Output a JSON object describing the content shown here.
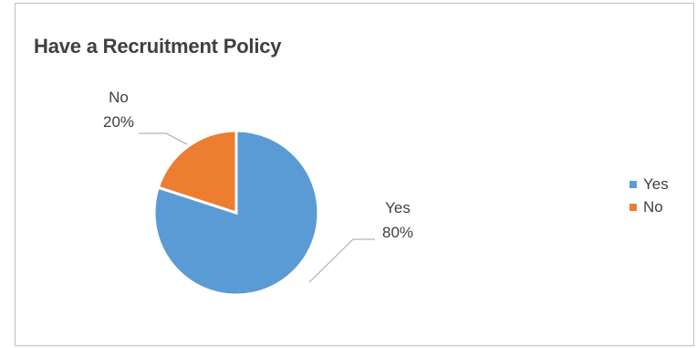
{
  "chart_data": {
    "type": "pie",
    "title": "Have a Recruitment Policy",
    "categories": [
      "Yes",
      "No"
    ],
    "values": [
      80,
      20
    ],
    "unit": "%",
    "slice_labels": [
      {
        "name": "Yes",
        "value_label": "80%"
      },
      {
        "name": "No",
        "value_label": "20%"
      }
    ],
    "colors": [
      "#5b9bd5",
      "#ed7d31"
    ],
    "legend": {
      "position": "right",
      "entries": [
        "Yes",
        "No"
      ]
    }
  }
}
